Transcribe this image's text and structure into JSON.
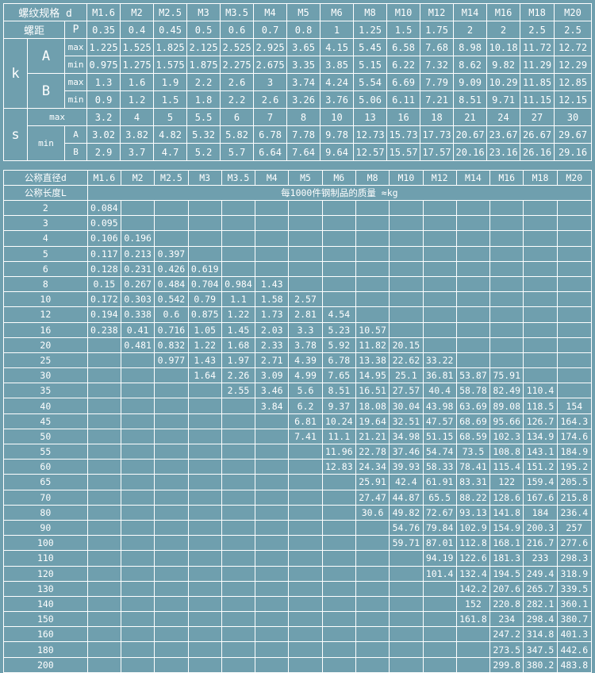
{
  "sizes": [
    "M1.6",
    "M2",
    "M2.5",
    "M3",
    "M3.5",
    "M4",
    "M5",
    "M6",
    "M8",
    "M10",
    "M12",
    "M14",
    "M16",
    "M18",
    "M20"
  ],
  "dimensions": {
    "thread_label": "螺纹规格 d",
    "pitch_label": "螺距",
    "pitch_symbol": "P",
    "pitch": [
      "0.35",
      "0.4",
      "0.45",
      "0.5",
      "0.6",
      "0.7",
      "0.8",
      "1",
      "1.25",
      "1.5",
      "1.75",
      "2",
      "2",
      "2.5",
      "2.5"
    ],
    "k_label": "k",
    "A_label": "A",
    "B_label": "B",
    "max_label": "max",
    "min_label": "min",
    "k_A_max": [
      "1.225",
      "1.525",
      "1.825",
      "2.125",
      "2.525",
      "2.925",
      "3.65",
      "4.15",
      "5.45",
      "6.58",
      "7.68",
      "8.98",
      "10.18",
      "11.72",
      "12.72"
    ],
    "k_A_min": [
      "0.975",
      "1.275",
      "1.575",
      "1.875",
      "2.275",
      "2.675",
      "3.35",
      "3.85",
      "5.15",
      "6.22",
      "7.32",
      "8.62",
      "9.82",
      "11.29",
      "12.29"
    ],
    "k_B_max": [
      "1.3",
      "1.6",
      "1.9",
      "2.2",
      "2.6",
      "3",
      "3.74",
      "4.24",
      "5.54",
      "6.69",
      "7.79",
      "9.09",
      "10.29",
      "11.85",
      "12.85"
    ],
    "k_B_min": [
      "0.9",
      "1.2",
      "1.5",
      "1.8",
      "2.2",
      "2.6",
      "3.26",
      "3.76",
      "5.06",
      "6.11",
      "7.21",
      "8.51",
      "9.71",
      "11.15",
      "12.15"
    ],
    "s_label": "s",
    "s_max": [
      "3.2",
      "4",
      "5",
      "5.5",
      "6",
      "7",
      "8",
      "10",
      "13",
      "16",
      "18",
      "21",
      "24",
      "27",
      "30"
    ],
    "s_min_A": [
      "3.02",
      "3.82",
      "4.82",
      "5.32",
      "5.82",
      "6.78",
      "7.78",
      "9.78",
      "12.73",
      "15.73",
      "17.73",
      "20.67",
      "23.67",
      "26.67",
      "29.67"
    ],
    "s_min_B": [
      "2.9",
      "3.7",
      "4.7",
      "5.2",
      "5.7",
      "6.64",
      "7.64",
      "9.64",
      "12.57",
      "15.57",
      "17.57",
      "20.16",
      "23.16",
      "26.16",
      "29.16"
    ]
  },
  "mass": {
    "dia_label": "公称直径d",
    "len_label": "公称长度L",
    "caption": "每1000件钢制品的质量 ≈kg",
    "rows": [
      {
        "L": "2",
        "v": [
          "0.084",
          "",
          "",
          "",
          "",
          "",
          "",
          "",
          "",
          "",
          "",
          "",
          "",
          "",
          ""
        ]
      },
      {
        "L": "3",
        "v": [
          "0.095",
          "",
          "",
          "",
          "",
          "",
          "",
          "",
          "",
          "",
          "",
          "",
          "",
          "",
          ""
        ]
      },
      {
        "L": "4",
        "v": [
          "0.106",
          "0.196",
          "",
          "",
          "",
          "",
          "",
          "",
          "",
          "",
          "",
          "",
          "",
          "",
          ""
        ]
      },
      {
        "L": "5",
        "v": [
          "0.117",
          "0.213",
          "0.397",
          "",
          "",
          "",
          "",
          "",
          "",
          "",
          "",
          "",
          "",
          "",
          ""
        ]
      },
      {
        "L": "6",
        "v": [
          "0.128",
          "0.231",
          "0.426",
          "0.619",
          "",
          "",
          "",
          "",
          "",
          "",
          "",
          "",
          "",
          "",
          ""
        ]
      },
      {
        "L": "8",
        "v": [
          "0.15",
          "0.267",
          "0.484",
          "0.704",
          "0.984",
          "1.43",
          "",
          "",
          "",
          "",
          "",
          "",
          "",
          "",
          ""
        ]
      },
      {
        "L": "10",
        "v": [
          "0.172",
          "0.303",
          "0.542",
          "0.79",
          "1.1",
          "1.58",
          "2.57",
          "",
          "",
          "",
          "",
          "",
          "",
          "",
          ""
        ]
      },
      {
        "L": "12",
        "v": [
          "0.194",
          "0.338",
          "0.6",
          "0.875",
          "1.22",
          "1.73",
          "2.81",
          "4.54",
          "",
          "",
          "",
          "",
          "",
          "",
          ""
        ]
      },
      {
        "L": "16",
        "v": [
          "0.238",
          "0.41",
          "0.716",
          "1.05",
          "1.45",
          "2.03",
          "3.3",
          "5.23",
          "10.57",
          "",
          "",
          "",
          "",
          "",
          ""
        ]
      },
      {
        "L": "20",
        "v": [
          "",
          "0.481",
          "0.832",
          "1.22",
          "1.68",
          "2.33",
          "3.78",
          "5.92",
          "11.82",
          "20.15",
          "",
          "",
          "",
          "",
          ""
        ]
      },
      {
        "L": "25",
        "v": [
          "",
          "",
          "0.977",
          "1.43",
          "1.97",
          "2.71",
          "4.39",
          "6.78",
          "13.38",
          "22.62",
          "33.22",
          "",
          "",
          "",
          ""
        ]
      },
      {
        "L": "30",
        "v": [
          "",
          "",
          "",
          "1.64",
          "2.26",
          "3.09",
          "4.99",
          "7.65",
          "14.95",
          "25.1",
          "36.81",
          "53.87",
          "75.91",
          "",
          ""
        ]
      },
      {
        "L": "35",
        "v": [
          "",
          "",
          "",
          "",
          "2.55",
          "3.46",
          "5.6",
          "8.51",
          "16.51",
          "27.57",
          "40.4",
          "58.78",
          "82.49",
          "110.4",
          ""
        ]
      },
      {
        "L": "40",
        "v": [
          "",
          "",
          "",
          "",
          "",
          "3.84",
          "6.2",
          "9.37",
          "18.08",
          "30.04",
          "43.98",
          "63.69",
          "89.08",
          "118.5",
          "154"
        ]
      },
      {
        "L": "45",
        "v": [
          "",
          "",
          "",
          "",
          "",
          "",
          "6.81",
          "10.24",
          "19.64",
          "32.51",
          "47.57",
          "68.69",
          "95.66",
          "126.7",
          "164.3"
        ]
      },
      {
        "L": "50",
        "v": [
          "",
          "",
          "",
          "",
          "",
          "",
          "7.41",
          "11.1",
          "21.21",
          "34.98",
          "51.15",
          "68.59",
          "102.3",
          "134.9",
          "174.6"
        ]
      },
      {
        "L": "55",
        "v": [
          "",
          "",
          "",
          "",
          "",
          "",
          "",
          "11.96",
          "22.78",
          "37.46",
          "54.74",
          "73.5",
          "108.8",
          "143.1",
          "184.9"
        ]
      },
      {
        "L": "60",
        "v": [
          "",
          "",
          "",
          "",
          "",
          "",
          "",
          "12.83",
          "24.34",
          "39.93",
          "58.33",
          "78.41",
          "115.4",
          "151.2",
          "195.2"
        ]
      },
      {
        "L": "65",
        "v": [
          "",
          "",
          "",
          "",
          "",
          "",
          "",
          "",
          "25.91",
          "42.4",
          "61.91",
          "83.31",
          "122",
          "159.4",
          "205.5"
        ]
      },
      {
        "L": "70",
        "v": [
          "",
          "",
          "",
          "",
          "",
          "",
          "",
          "",
          "27.47",
          "44.87",
          "65.5",
          "88.22",
          "128.6",
          "167.6",
          "215.8"
        ]
      },
      {
        "L": "80",
        "v": [
          "",
          "",
          "",
          "",
          "",
          "",
          "",
          "",
          "30.6",
          "49.82",
          "72.67",
          "93.13",
          "141.8",
          "184",
          "236.4"
        ]
      },
      {
        "L": "90",
        "v": [
          "",
          "",
          "",
          "",
          "",
          "",
          "",
          "",
          "",
          "54.76",
          "79.84",
          "102.9",
          "154.9",
          "200.3",
          "257"
        ]
      },
      {
        "L": "100",
        "v": [
          "",
          "",
          "",
          "",
          "",
          "",
          "",
          "",
          "",
          "59.71",
          "87.01",
          "112.8",
          "168.1",
          "216.7",
          "277.6"
        ]
      },
      {
        "L": "110",
        "v": [
          "",
          "",
          "",
          "",
          "",
          "",
          "",
          "",
          "",
          "",
          "94.19",
          "122.6",
          "181.3",
          "233",
          "298.3"
        ]
      },
      {
        "L": "120",
        "v": [
          "",
          "",
          "",
          "",
          "",
          "",
          "",
          "",
          "",
          "",
          "101.4",
          "132.4",
          "194.5",
          "249.4",
          "318.9"
        ]
      },
      {
        "L": "130",
        "v": [
          "",
          "",
          "",
          "",
          "",
          "",
          "",
          "",
          "",
          "",
          "",
          "142.2",
          "207.6",
          "265.7",
          "339.5"
        ]
      },
      {
        "L": "140",
        "v": [
          "",
          "",
          "",
          "",
          "",
          "",
          "",
          "",
          "",
          "",
          "",
          "152",
          "220.8",
          "282.1",
          "360.1"
        ]
      },
      {
        "L": "150",
        "v": [
          "",
          "",
          "",
          "",
          "",
          "",
          "",
          "",
          "",
          "",
          "",
          "161.8",
          "234",
          "298.4",
          "380.7"
        ]
      },
      {
        "L": "160",
        "v": [
          "",
          "",
          "",
          "",
          "",
          "",
          "",
          "",
          "",
          "",
          "",
          "",
          "247.2",
          "314.8",
          "401.3"
        ]
      },
      {
        "L": "180",
        "v": [
          "",
          "",
          "",
          "",
          "",
          "",
          "",
          "",
          "",
          "",
          "",
          "",
          "273.5",
          "347.5",
          "442.6"
        ]
      },
      {
        "L": "200",
        "v": [
          "",
          "",
          "",
          "",
          "",
          "",
          "",
          "",
          "",
          "",
          "",
          "",
          "299.8",
          "380.2",
          "483.8"
        ]
      }
    ]
  }
}
